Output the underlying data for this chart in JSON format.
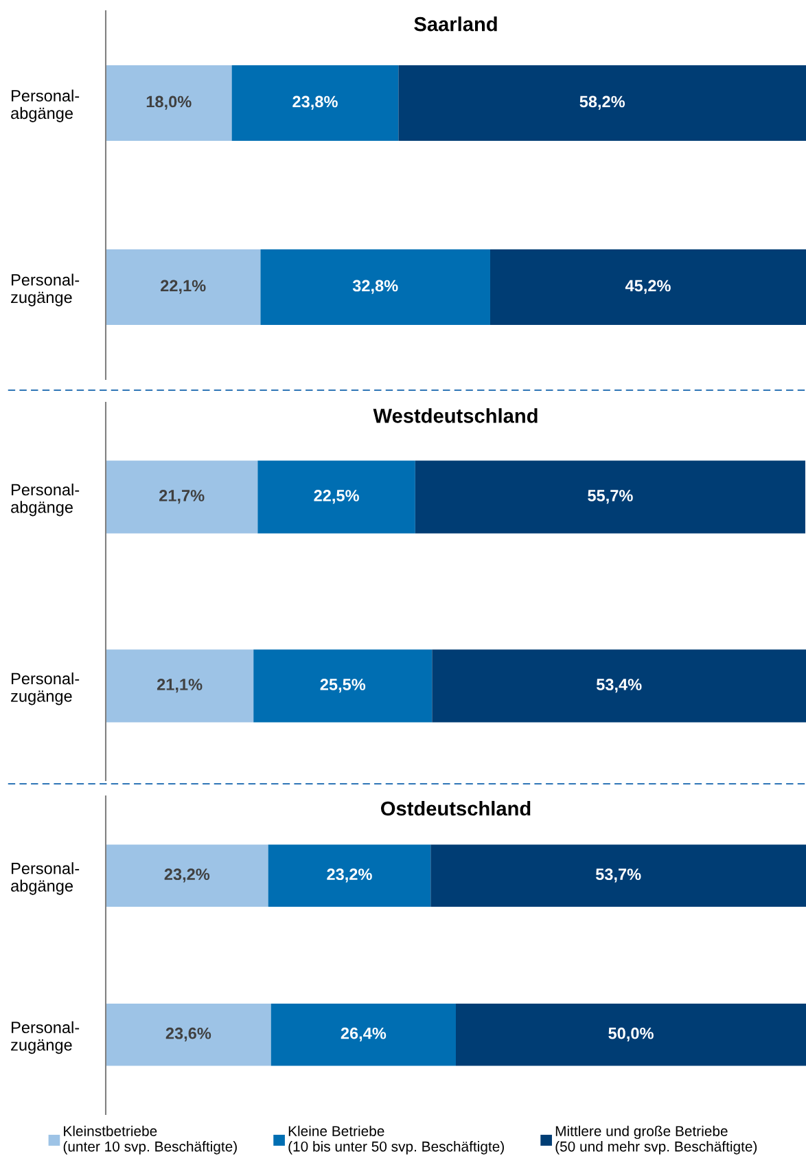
{
  "chart_data": [
    {
      "type": "bar",
      "orientation": "horizontal",
      "stacked": true,
      "title": "Saarland",
      "categories": [
        "Personal-\nabgänge",
        "Personal-\nzugänge"
      ],
      "xlim": [
        0,
        100
      ],
      "tick_labels": "y",
      "grid": false,
      "series": [
        {
          "color": "#9dc3e6",
          "values": [
            18.0,
            22.1
          ],
          "value_labels": [
            "18,0%",
            "22,1%"
          ]
        },
        {
          "color": "#006eb2",
          "values": [
            23.8,
            32.8
          ],
          "value_labels": [
            "23,8%",
            "32,8%"
          ]
        },
        {
          "color": "#003d74",
          "values": [
            58.2,
            45.2
          ],
          "value_labels": [
            "58,2%",
            "45,2%"
          ]
        }
      ]
    },
    {
      "type": "bar",
      "orientation": "horizontal",
      "stacked": true,
      "title": "Westdeutschland",
      "categories": [
        "Personal-\nabgänge",
        "Personal-\nzugänge"
      ],
      "xlim": [
        0,
        100
      ],
      "tick_labels": "y",
      "grid": false,
      "series": [
        {
          "color": "#9dc3e6",
          "values": [
            21.7,
            21.1
          ],
          "value_labels": [
            "21,7%",
            "21,1%"
          ]
        },
        {
          "color": "#006eb2",
          "values": [
            22.5,
            25.5
          ],
          "value_labels": [
            "22,5%",
            "25,5%"
          ]
        },
        {
          "color": "#003d74",
          "values": [
            55.7,
            53.4
          ],
          "value_labels": [
            "55,7%",
            "53,4%"
          ]
        }
      ]
    },
    {
      "type": "bar",
      "orientation": "horizontal",
      "stacked": true,
      "title": "Ostdeutschland",
      "categories": [
        "Personal-\nabgänge",
        "Personal-\nzugänge"
      ],
      "xlim": [
        0,
        100
      ],
      "tick_labels": "y",
      "grid": false,
      "legend": "bottom",
      "series": [
        {
          "name": "Kleinstbetriebe\n(unter 10 svp. Beschäftigte)",
          "color": "#9dc3e6",
          "values": [
            23.2,
            23.6
          ],
          "value_labels": [
            "23,2%",
            "23,6%"
          ]
        },
        {
          "name": "Kleine Betriebe\n(10 bis unter 50 svp. Beschäftigte)",
          "color": "#006eb2",
          "values": [
            23.2,
            26.4
          ],
          "value_labels": [
            "23,2%",
            "26,4%"
          ]
        },
        {
          "name": "Mittlere und große Betriebe\n(50 und mehr svp. Beschäftigte)",
          "color": "#003d74",
          "values": [
            53.7,
            50.0
          ],
          "value_labels": [
            "53,7%",
            "50,0%"
          ]
        }
      ]
    }
  ]
}
